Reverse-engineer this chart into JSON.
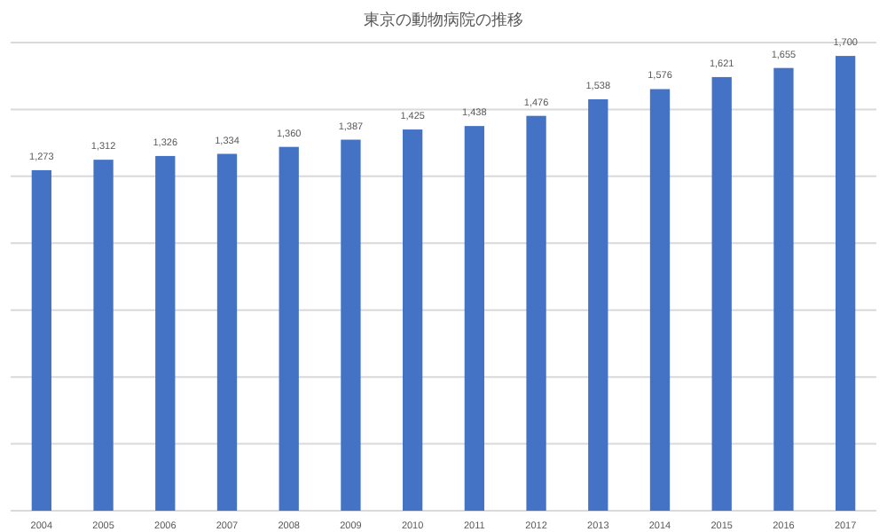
{
  "chart_data": {
    "type": "bar",
    "title": "東京の動物病院の推移",
    "categories": [
      "2004",
      "2005",
      "2006",
      "2007",
      "2008",
      "2009",
      "2010",
      "2011",
      "2012",
      "2013",
      "2014",
      "2015",
      "2016",
      "2017"
    ],
    "values": [
      1273,
      1312,
      1326,
      1334,
      1360,
      1387,
      1425,
      1438,
      1476,
      1538,
      1576,
      1621,
      1655,
      1700
    ],
    "value_labels": [
      "1,273",
      "1,312",
      "1,326",
      "1,334",
      "1,360",
      "1,387",
      "1,425",
      "1,438",
      "1,476",
      "1,538",
      "1,576",
      "1,621",
      "1,655",
      "1,700"
    ],
    "color": "#4472c4",
    "grid": "y",
    "tick_labels": "x"
  }
}
